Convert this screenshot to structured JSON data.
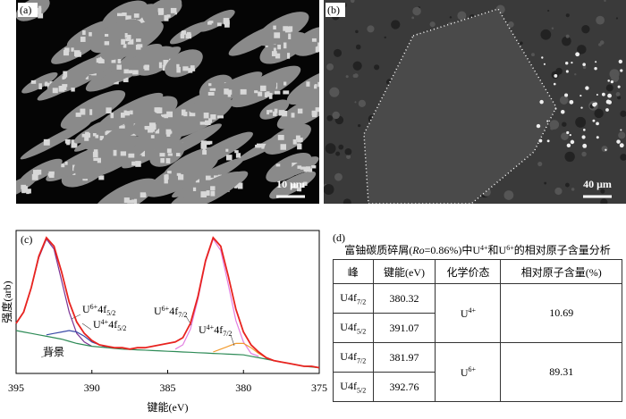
{
  "panels": [
    {
      "label": "(a)",
      "scale_bar": "10 μm"
    },
    {
      "label": "(b)",
      "scale_bar": "40 μm"
    }
  ],
  "chart_data": {
    "type": "line",
    "label": "(c)",
    "xlabel": "键能(eV)",
    "ylabel": "强度(arb)",
    "xlim": [
      395,
      375
    ],
    "xticks": [
      395,
      390,
      385,
      380,
      375
    ],
    "ylim": [
      0,
      100
    ],
    "x": [
      395,
      394.5,
      394,
      393.5,
      393,
      392.5,
      392,
      391.5,
      391,
      390.5,
      390,
      389.5,
      389,
      388.5,
      388,
      387.5,
      387,
      386.5,
      386,
      385.5,
      385,
      384.5,
      384,
      383.5,
      383,
      382.5,
      382,
      381.5,
      381,
      380.5,
      380,
      379.5,
      379,
      378.5,
      378,
      377.5,
      377,
      376.5,
      376,
      375.5,
      375
    ],
    "series": [
      {
        "name": [
          {
            "text": "U"
          },
          {
            "sup": "6+"
          },
          {
            "text": "4f"
          },
          {
            "sub": "5/2"
          }
        ],
        "color": "#7b3294",
        "values": [
          35,
          43,
          60,
          81,
          94,
          87,
          65,
          43,
          28,
          22,
          19,
          null,
          null,
          null,
          null,
          null,
          null,
          null,
          null,
          null,
          null,
          null,
          null,
          null,
          null,
          null,
          null,
          null,
          null,
          null,
          null,
          null,
          null,
          null,
          null,
          null,
          null,
          null,
          null,
          null,
          null
        ]
      },
      {
        "name": [
          {
            "text": "U"
          },
          {
            "sup": "4+"
          },
          {
            "text": "4f"
          },
          {
            "sub": "5/2"
          }
        ],
        "color": "#3b4ba8",
        "values": [
          null,
          null,
          null,
          null,
          27,
          28,
          29,
          30,
          29,
          26,
          22,
          20,
          18,
          null,
          null,
          null,
          null,
          null,
          null,
          null,
          null,
          null,
          null,
          null,
          null,
          null,
          null,
          null,
          null,
          null,
          null,
          null,
          null,
          null,
          null,
          null,
          null,
          null,
          null,
          null,
          null
        ]
      },
      {
        "name": [
          {
            "text": "U"
          },
          {
            "sup": "6+"
          },
          {
            "text": "4f"
          },
          {
            "sub": "7/2"
          }
        ],
        "color": "#e27fe2",
        "values": [
          null,
          null,
          null,
          null,
          null,
          null,
          null,
          null,
          null,
          null,
          null,
          null,
          null,
          null,
          null,
          null,
          null,
          null,
          null,
          null,
          null,
          17,
          20,
          31,
          52,
          78,
          94,
          86,
          62,
          37,
          22,
          14,
          12,
          null,
          null,
          null,
          null,
          null,
          null,
          null,
          null
        ]
      },
      {
        "name": [
          {
            "text": "U"
          },
          {
            "sup": "4+"
          },
          {
            "text": "4f"
          },
          {
            "sub": "7/2"
          }
        ],
        "color": "#f29a2e",
        "values": [
          null,
          null,
          null,
          null,
          null,
          null,
          null,
          null,
          null,
          null,
          null,
          null,
          null,
          null,
          null,
          null,
          null,
          null,
          null,
          null,
          null,
          null,
          null,
          null,
          null,
          null,
          15,
          17,
          19,
          21,
          21,
          18,
          14,
          11,
          9,
          null,
          null,
          null,
          null,
          null,
          null
        ]
      },
      {
        "name": [
          {
            "text": "背景"
          }
        ],
        "color": "#2e8b57",
        "values": [
          30,
          29,
          28,
          27,
          26,
          25,
          24,
          22.5,
          21,
          20,
          19,
          18.5,
          18,
          17.5,
          17,
          16.8,
          16.5,
          16.3,
          16,
          15.8,
          15.5,
          15.3,
          15,
          14.8,
          14.5,
          14.3,
          14,
          13.8,
          13.5,
          13.3,
          13,
          12,
          11,
          10,
          9,
          8,
          7,
          6,
          5,
          4.5,
          4
        ]
      },
      {
        "color": "#e8231f",
        "values": [
          35,
          43,
          60,
          82,
          95,
          89,
          71,
          50,
          36,
          28,
          23,
          20,
          19,
          18,
          18,
          17,
          18,
          18,
          19,
          20,
          21,
          22,
          25,
          35,
          54,
          79,
          95,
          89,
          68,
          45,
          29,
          20,
          15,
          11,
          9,
          8,
          7,
          6,
          5,
          5,
          4
        ]
      }
    ]
  },
  "table": {
    "label": "(d)",
    "title": [
      {
        "text": "富铀碳质碎屑("
      },
      {
        "italic": "Ro"
      },
      {
        "text": "=0.86%)中U"
      },
      {
        "sup": "4+"
      },
      {
        "text": "和U"
      },
      {
        "sup": "6+"
      },
      {
        "text": "的相对原子含量分析"
      }
    ],
    "header": [
      "峰",
      "键能(eV)",
      "化学价态",
      "相对原子含量(%)"
    ],
    "rows": [
      {
        "peak": [
          {
            "text": "U4f"
          },
          {
            "sub": "7/2"
          }
        ],
        "energy": 380.32
      },
      {
        "peak": [
          {
            "text": "U4f"
          },
          {
            "sub": "5/2"
          }
        ],
        "energy": 391.07
      },
      {
        "peak": [
          {
            "text": "U4f"
          },
          {
            "sub": "7/2"
          }
        ],
        "energy": 381.97
      },
      {
        "peak": [
          {
            "text": "U4f"
          },
          {
            "sub": "5/2"
          }
        ],
        "energy": 392.76
      }
    ],
    "groups": [
      {
        "valence": [
          {
            "text": "U"
          },
          {
            "sup": "4+"
          }
        ],
        "content": 10.69
      },
      {
        "valence": [
          {
            "text": "U"
          },
          {
            "sup": "6+"
          }
        ],
        "content": 89.31
      }
    ]
  }
}
